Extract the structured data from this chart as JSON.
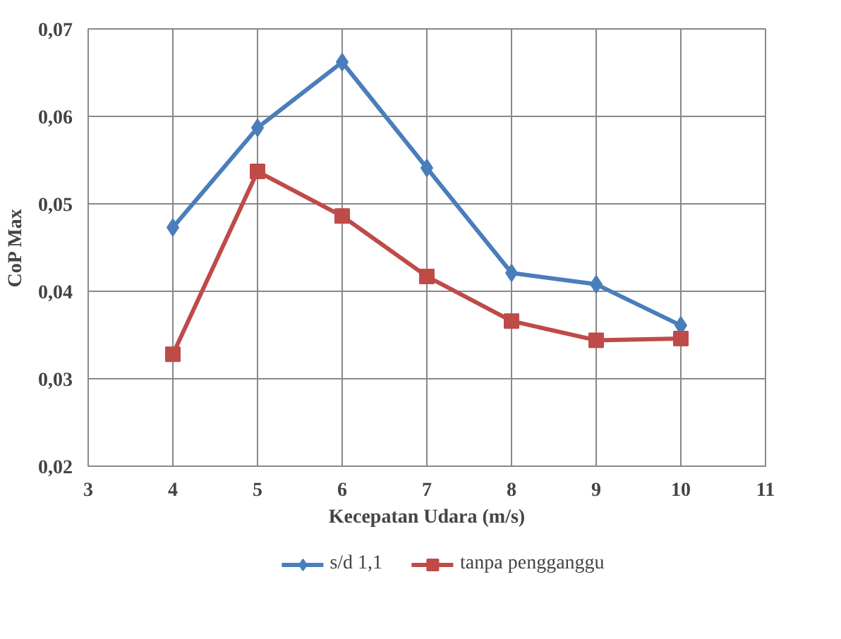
{
  "chart_data": {
    "type": "line",
    "xlabel": "Kecepatan Udara (m/s)",
    "ylabel": "CoP Max",
    "x": [
      4,
      5,
      6,
      7,
      8,
      9,
      10
    ],
    "xlim": [
      3,
      11
    ],
    "xticks": [
      3,
      4,
      5,
      6,
      7,
      8,
      9,
      10,
      11
    ],
    "ylim": [
      0.02,
      0.07
    ],
    "yticks": [
      {
        "value": 0.02,
        "label": "0,02"
      },
      {
        "value": 0.03,
        "label": "0,03"
      },
      {
        "value": 0.04,
        "label": "0,04"
      },
      {
        "value": 0.05,
        "label": "0,05"
      },
      {
        "value": 0.06,
        "label": "0,06"
      },
      {
        "value": 0.07,
        "label": "0,07"
      }
    ],
    "grid": true,
    "legend": "bottom",
    "line_style": "solid",
    "series": [
      {
        "name": "s/d 1,1",
        "color": "#4a7ebb",
        "marker": "diamond",
        "values": [
          0.0473,
          0.0587,
          0.0662,
          0.0541,
          0.0421,
          0.0408,
          0.0361
        ]
      },
      {
        "name": "tanpa pengganggu",
        "color": "#be4b48",
        "marker": "square",
        "values": [
          0.0328,
          0.0537,
          0.0486,
          0.0417,
          0.0366,
          0.0344,
          0.0346
        ]
      }
    ]
  }
}
